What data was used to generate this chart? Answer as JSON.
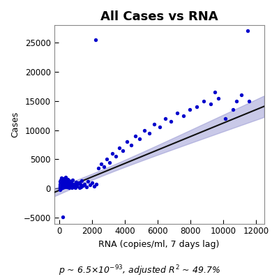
{
  "title": "All Cases vs RNA",
  "xlabel": "RNA (copies/ml, 7 days lag)",
  "ylabel": "Cases",
  "annotation": "$p$ ~ 6.5×10$^{-93}$, adjusted $R^2$ ~ 49.7%",
  "xlim": [
    -300,
    12500
  ],
  "ylim": [
    -6000,
    28000
  ],
  "xticks": [
    0,
    2000,
    4000,
    6000,
    8000,
    10000,
    12000
  ],
  "yticks": [
    -5000,
    0,
    5000,
    10000,
    15000,
    20000,
    25000
  ],
  "dot_color": "#0000cc",
  "line_color": "#111111",
  "band_color": "#8888cc",
  "regression_intercept": -300,
  "regression_slope": 1.15,
  "title_fontsize": 13,
  "axis_fontsize": 9,
  "annotation_fontsize": 9,
  "x_scatter": [
    30,
    40,
    50,
    60,
    70,
    80,
    90,
    100,
    110,
    120,
    130,
    140,
    150,
    160,
    170,
    180,
    190,
    200,
    210,
    220,
    230,
    240,
    250,
    260,
    270,
    280,
    290,
    300,
    320,
    340,
    360,
    380,
    400,
    420,
    440,
    460,
    480,
    500,
    530,
    560,
    590,
    620,
    650,
    680,
    710,
    750,
    790,
    830,
    870,
    920,
    970,
    1020,
    1080,
    1150,
    1220,
    1300,
    1380,
    1470,
    1560,
    1660,
    1760,
    1870,
    1990,
    2120,
    2260,
    2400,
    2560,
    2720,
    2890,
    3070,
    3260,
    3460,
    3670,
    3890,
    4120,
    4370,
    4630,
    4900,
    5180,
    5480,
    5790,
    6120,
    6460,
    6820,
    7190,
    7570,
    7970,
    8380,
    8800,
    9240,
    9690,
    10150,
    10620,
    11100,
    11580,
    2200,
    200,
    11500,
    10800,
    9500,
    60,
    80,
    100,
    130,
    160,
    200,
    240,
    290,
    340,
    400,
    460,
    530,
    610,
    690,
    780,
    880,
    980,
    1090,
    1210,
    1340
  ],
  "y_scatter": [
    200,
    800,
    500,
    300,
    1200,
    100,
    700,
    1500,
    400,
    900,
    1800,
    600,
    300,
    1100,
    200,
    1600,
    800,
    400,
    1300,
    700,
    200,
    1000,
    500,
    1700,
    900,
    400,
    1200,
    600,
    800,
    300,
    1400,
    700,
    1900,
    500,
    1100,
    300,
    800,
    1600,
    400,
    900,
    200,
    1300,
    700,
    400,
    1000,
    500,
    200,
    1500,
    800,
    300,
    600,
    1100,
    400,
    900,
    200,
    700,
    1400,
    500,
    800,
    300,
    1200,
    600,
    1000,
    400,
    800,
    3500,
    4200,
    3800,
    5000,
    4500,
    6000,
    5500,
    7000,
    6500,
    8000,
    7500,
    9000,
    8500,
    10000,
    9500,
    11000,
    10500,
    12000,
    11500,
    13000,
    12500,
    13500,
    14000,
    15000,
    14500,
    15500,
    12000,
    13500,
    16000,
    15000,
    25500,
    -4800,
    27000,
    15000,
    16500,
    -200,
    100,
    300,
    600,
    200,
    500,
    800,
    1100,
    400,
    700,
    300,
    900,
    500,
    1200,
    400,
    800,
    200,
    600,
    1000,
    300
  ]
}
